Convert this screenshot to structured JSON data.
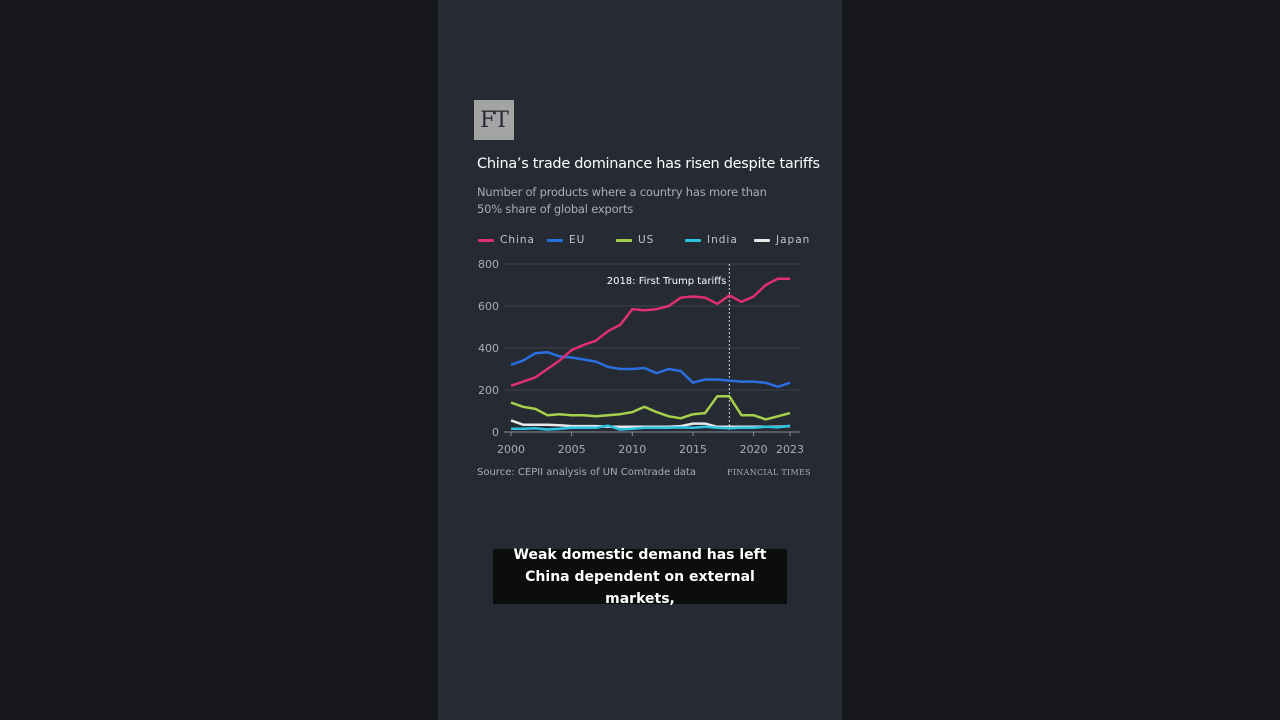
{
  "logo": "FT",
  "title": "China’s trade dominance has risen despite tariffs",
  "subtitle": "Number of products where a country has more than 50% share of global exports",
  "source": "Source: CEPII analysis of UN Comtrade data",
  "publisher": "FINANCIAL TIMES",
  "caption": {
    "line1": "Weak domestic demand has left",
    "line2": "China dependent on external markets,"
  },
  "chart_data": {
    "type": "line",
    "title": "China’s trade dominance has risen despite tariffs",
    "ylim": [
      0,
      800
    ],
    "yticks": [
      "0",
      "200",
      "400",
      "600",
      "800"
    ],
    "xticks": [
      "2000",
      "2005",
      "2010",
      "2015",
      "2020",
      "2023"
    ],
    "xtick_values": [
      2000,
      2005,
      2010,
      2015,
      2020,
      2023
    ],
    "ytick_values": [
      0,
      200,
      400,
      600,
      800
    ],
    "xlim": [
      2000,
      2023
    ],
    "grid": true,
    "legend": "top-left",
    "annotation": {
      "x": 2018,
      "label": "2018: First Trump tariffs"
    },
    "x": [
      2000,
      2001,
      2002,
      2003,
      2004,
      2005,
      2006,
      2007,
      2008,
      2009,
      2010,
      2011,
      2012,
      2013,
      2014,
      2015,
      2016,
      2017,
      2018,
      2019,
      2020,
      2021,
      2022,
      2023
    ],
    "series": [
      {
        "name": "China",
        "color": "#e0306f",
        "values": [
          220,
          240,
          260,
          300,
          340,
          390,
          415,
          435,
          480,
          510,
          585,
          580,
          585,
          600,
          640,
          645,
          640,
          610,
          650,
          620,
          645,
          700,
          730,
          730
        ]
      },
      {
        "name": "EU",
        "color": "#2a6fe0",
        "values": [
          320,
          340,
          375,
          380,
          360,
          355,
          345,
          335,
          310,
          300,
          300,
          305,
          280,
          300,
          290,
          235,
          250,
          250,
          245,
          240,
          240,
          235,
          215,
          235
        ]
      },
      {
        "name": "US",
        "color": "#a6d14a",
        "values": [
          140,
          120,
          110,
          80,
          85,
          80,
          80,
          75,
          80,
          85,
          95,
          120,
          95,
          75,
          65,
          85,
          90,
          170,
          170,
          80,
          80,
          60,
          75,
          90
        ]
      },
      {
        "name": "India",
        "color": "#2cc3e0",
        "values": [
          15,
          15,
          18,
          12,
          15,
          20,
          20,
          20,
          30,
          12,
          15,
          20,
          20,
          20,
          22,
          20,
          25,
          20,
          18,
          20,
          20,
          25,
          22,
          30
        ]
      },
      {
        "name": "Japan",
        "color": "#e8e8e8",
        "values": [
          55,
          35,
          35,
          35,
          32,
          28,
          28,
          28,
          25,
          25,
          25,
          25,
          25,
          25,
          28,
          40,
          40,
          25,
          25,
          25,
          25,
          25,
          25,
          28
        ]
      }
    ]
  }
}
